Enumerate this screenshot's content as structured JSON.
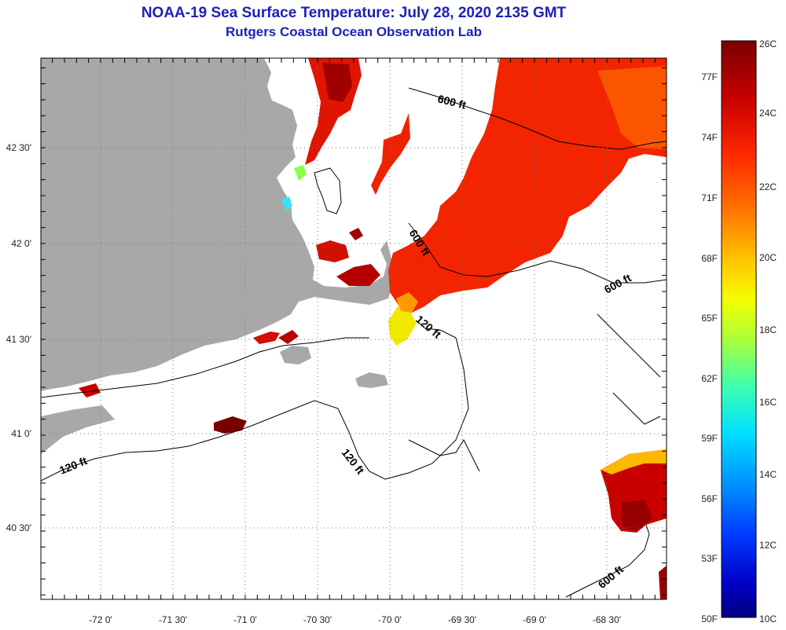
{
  "header": {
    "title": "NOAA-19 Sea Surface Temperature:  July 28, 2020 2135 GMT",
    "subtitle": "Rutgers Coastal Ocean Observation Lab"
  },
  "map": {
    "lon_ticks": [
      "-72 0'",
      "-71 30'",
      "-71 0'",
      "-70 30'",
      "-70 0'",
      "-69 30'",
      "-69 0'",
      "-68 30'"
    ],
    "lat_ticks": [
      "42 30'",
      "42 0'",
      "41 30'",
      "41 0'",
      "40 30'"
    ],
    "contour_labels": [
      "600 ft",
      "600 ft",
      "600 ft",
      "600 ft",
      "120 ft",
      "120 ft",
      "120 ft"
    ]
  },
  "colorbar": {
    "celsius_labels": [
      "26C",
      "24C",
      "22C",
      "20C",
      "18C",
      "16C",
      "14C",
      "12C",
      "10C"
    ],
    "fahrenheit_labels": [
      "77F",
      "74F",
      "71F",
      "68F",
      "65F",
      "62F",
      "59F",
      "56F",
      "53F",
      "50F"
    ],
    "colors": [
      "#7a0000",
      "#c80000",
      "#ff2a00",
      "#ff7a00",
      "#ffc400",
      "#f4ff00",
      "#a8ff3c",
      "#3cffb0",
      "#00e0ff",
      "#0090ff",
      "#0038ff",
      "#0000c8",
      "#000080"
    ]
  },
  "colors": {
    "land": "#a8a8a8",
    "title": "#1f1fb8"
  }
}
